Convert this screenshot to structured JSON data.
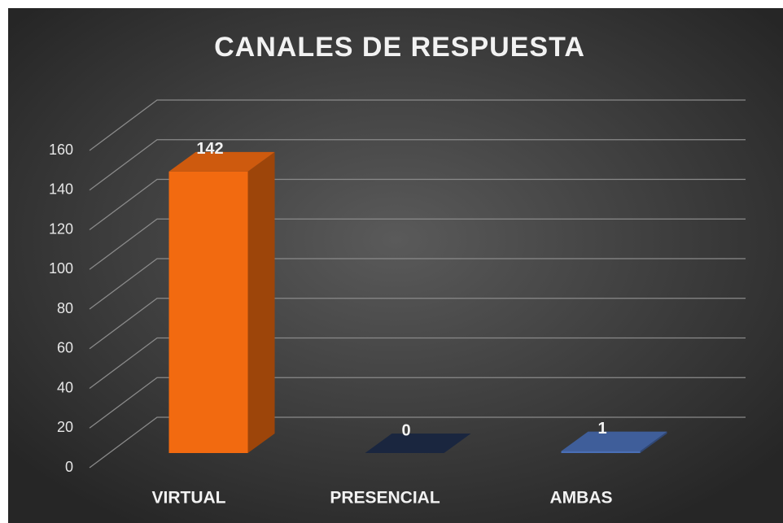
{
  "chart_data": {
    "type": "bar3d",
    "title": "CANALES DE RESPUESTA",
    "categories": [
      "VIRTUAL",
      "PRESENCIAL",
      "AMBAS"
    ],
    "values": [
      142,
      0,
      1
    ],
    "colors": [
      "#f26a10",
      "#1f2d4a",
      "#4a6fb5"
    ],
    "ylim": [
      0,
      160
    ],
    "yticks": [
      0,
      20,
      40,
      60,
      80,
      100,
      120,
      140,
      160
    ],
    "grid": true
  }
}
